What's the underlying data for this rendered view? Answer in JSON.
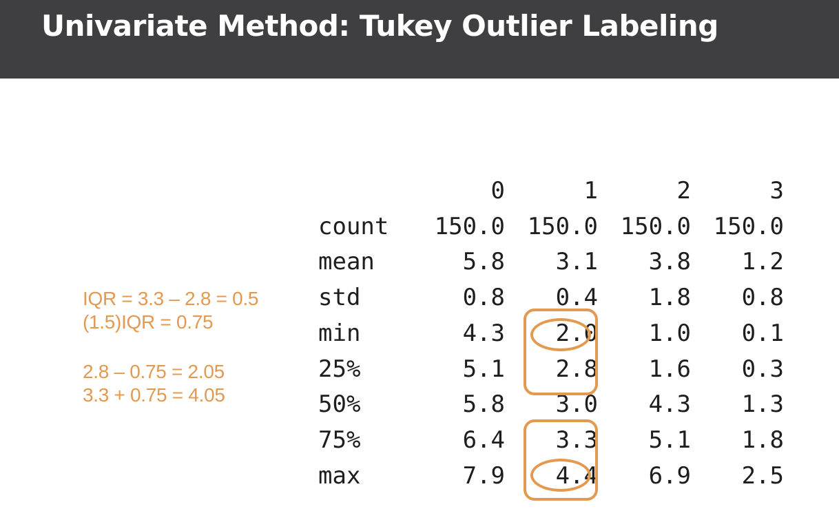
{
  "title": "Univariate Method: Tukey Outlier Labeling",
  "notes": {
    "iqr_line": "IQR = 3.3 – 2.8 = 0.5",
    "scaled_iqr_line": "(1.5)IQR = 0.75",
    "lower_line": "2.8 – 0.75 = 2.05",
    "upper_line": "3.3 + 0.75 = 4.05"
  },
  "table": {
    "columns": [
      "0",
      "1",
      "2",
      "3"
    ],
    "rows": [
      {
        "label": "count",
        "values": [
          "150.0",
          "150.0",
          "150.0",
          "150.0"
        ]
      },
      {
        "label": "mean",
        "values": [
          "5.8",
          "3.1",
          "3.8",
          "1.2"
        ]
      },
      {
        "label": "std",
        "values": [
          "0.8",
          "0.4",
          "1.8",
          "0.8"
        ]
      },
      {
        "label": "min",
        "values": [
          "4.3",
          "2.0",
          "1.0",
          "0.1"
        ]
      },
      {
        "label": "25%",
        "values": [
          "5.1",
          "2.8",
          "1.6",
          "0.3"
        ]
      },
      {
        "label": "50%",
        "values": [
          "5.8",
          "3.0",
          "4.3",
          "1.3"
        ]
      },
      {
        "label": "75%",
        "values": [
          "6.4",
          "3.3",
          "5.1",
          "1.8"
        ]
      },
      {
        "label": "max",
        "values": [
          "7.9",
          "4.4",
          "6.9",
          "2.5"
        ]
      }
    ]
  },
  "colors": {
    "accent": "#e3994f",
    "title_bar": "#3f3f41"
  }
}
